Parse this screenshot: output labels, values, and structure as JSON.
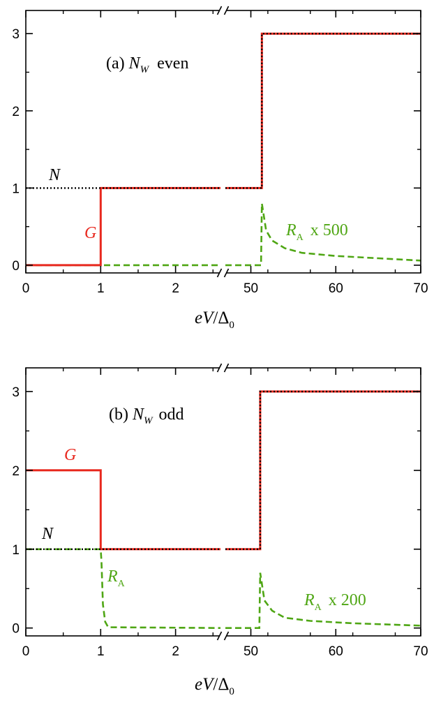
{
  "chart_data": [
    {
      "type": "line",
      "panel_label": "(a)",
      "panel_subject": "N",
      "panel_subject_sub": "W",
      "panel_parity": "even",
      "xlabel": "eV/Δ",
      "xlabel_sub": "0",
      "axis_break": true,
      "x_segments": [
        {
          "range": [
            0,
            2.6
          ],
          "ticks": [
            0,
            1,
            2
          ],
          "tick_labels": [
            "0",
            "1",
            "2"
          ]
        },
        {
          "range": [
            47,
            70
          ],
          "ticks": [
            50,
            60,
            70
          ],
          "tick_labels": [
            "50",
            "60",
            "70"
          ]
        }
      ],
      "ylim": [
        -0.1,
        3.3
      ],
      "yticks": [
        0,
        1,
        2,
        3
      ],
      "ytick_labels": [
        "0",
        "1",
        "2",
        "3"
      ],
      "series": [
        {
          "name": "N",
          "style": "dotted",
          "color": "#000000",
          "points": [
            [
              0,
              1
            ],
            [
              2.6,
              1
            ],
            [
              47,
              1
            ],
            [
              51.3,
              1
            ],
            [
              51.3,
              3
            ],
            [
              70,
              3
            ]
          ]
        },
        {
          "name": "G",
          "style": "solid",
          "color": "#e8281e",
          "points": [
            [
              0,
              0
            ],
            [
              1,
              0
            ],
            [
              1,
              1
            ],
            [
              2.6,
              1
            ],
            [
              47,
              1
            ],
            [
              51.3,
              1
            ],
            [
              51.3,
              3
            ],
            [
              70,
              3
            ]
          ]
        },
        {
          "name": "R",
          "name_sub": "A",
          "label_suffix": "x 500",
          "style": "dashed",
          "color": "#4fa614",
          "points": [
            [
              0,
              0
            ],
            [
              1,
              0
            ],
            [
              2.6,
              0
            ],
            [
              47,
              0
            ],
            [
              51.2,
              0
            ],
            [
              51.3,
              0.8
            ],
            [
              51.8,
              0.45
            ],
            [
              52.5,
              0.32
            ],
            [
              54,
              0.22
            ],
            [
              56,
              0.16
            ],
            [
              60,
              0.12
            ],
            [
              65,
              0.09
            ],
            [
              70,
              0.06
            ]
          ]
        }
      ]
    },
    {
      "type": "line",
      "panel_label": "(b)",
      "panel_subject": "N",
      "panel_subject_sub": "W",
      "panel_parity": "odd",
      "xlabel": "eV/Δ",
      "xlabel_sub": "0",
      "axis_break": true,
      "x_segments": [
        {
          "range": [
            0,
            2.6
          ],
          "ticks": [
            0,
            1,
            2
          ],
          "tick_labels": [
            "0",
            "1",
            "2"
          ]
        },
        {
          "range": [
            47,
            70
          ],
          "ticks": [
            50,
            60,
            70
          ],
          "tick_labels": [
            "50",
            "60",
            "70"
          ]
        }
      ],
      "ylim": [
        -0.1,
        3.3
      ],
      "yticks": [
        0,
        1,
        2,
        3
      ],
      "ytick_labels": [
        "0",
        "1",
        "2",
        "3"
      ],
      "series": [
        {
          "name": "N",
          "style": "dotted",
          "color": "#000000",
          "points": [
            [
              0,
              1
            ],
            [
              2.6,
              1
            ],
            [
              47,
              1
            ],
            [
              51.1,
              1
            ],
            [
              51.1,
              3
            ],
            [
              70,
              3
            ]
          ]
        },
        {
          "name": "G",
          "style": "solid",
          "color": "#e8281e",
          "points": [
            [
              0,
              2
            ],
            [
              1,
              2
            ],
            [
              1,
              1
            ],
            [
              2.6,
              1
            ],
            [
              47,
              1
            ],
            [
              51.1,
              1
            ],
            [
              51.1,
              3
            ],
            [
              70,
              3
            ]
          ]
        },
        {
          "name": "R",
          "name_sub": "A",
          "label_suffix": "",
          "style": "dashed",
          "color": "#4fa614",
          "points": [
            [
              0,
              1
            ],
            [
              1,
              1
            ],
            [
              1.01,
              0.85
            ],
            [
              1.03,
              0.3
            ],
            [
              1.06,
              0.08
            ],
            [
              1.1,
              0.01
            ],
            [
              2.6,
              0
            ],
            [
              47,
              0
            ],
            [
              51.0,
              0
            ],
            [
              51.1,
              0.7
            ],
            [
              51.6,
              0.35
            ],
            [
              52.5,
              0.22
            ],
            [
              54,
              0.13
            ],
            [
              57,
              0.09
            ],
            [
              62,
              0.06
            ],
            [
              70,
              0.03
            ]
          ]
        },
        {
          "name": "R",
          "name_sub": "A",
          "label_suffix": "x 200",
          "style": "none",
          "color": "#4fa614",
          "points": []
        }
      ]
    }
  ]
}
